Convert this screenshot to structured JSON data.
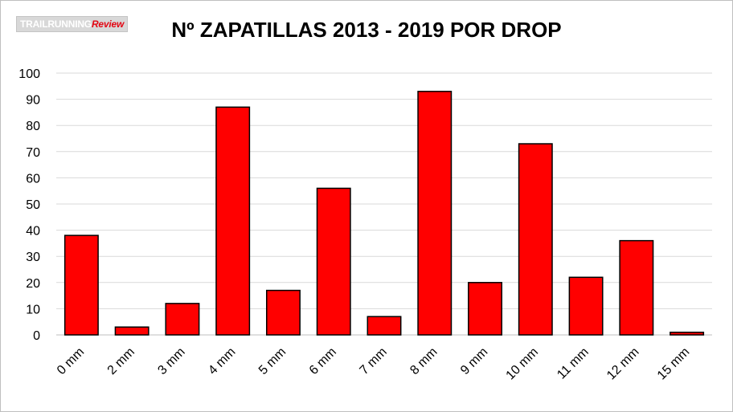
{
  "logo": {
    "part1": "TRAILRUNNING",
    "part2": "Review"
  },
  "chart_data": {
    "type": "bar",
    "title": "Nº ZAPATILLAS 2013 - 2019 POR DROP",
    "xlabel": "",
    "ylabel": "",
    "categories": [
      "0 mm",
      "2 mm",
      "3 mm",
      "4 mm",
      "5 mm",
      "6 mm",
      "7 mm",
      "8 mm",
      "9 mm",
      "10 mm",
      "11 mm",
      "12 mm",
      "15 mm"
    ],
    "values": [
      38,
      3,
      12,
      87,
      17,
      56,
      7,
      93,
      20,
      73,
      22,
      36,
      1
    ],
    "ylim": [
      0,
      100
    ],
    "yticks": [
      0,
      10,
      20,
      30,
      40,
      50,
      60,
      70,
      80,
      90,
      100
    ],
    "grid": true,
    "legend": "none",
    "bar_color": "#ff0000",
    "bar_edge_color": "#000000"
  }
}
